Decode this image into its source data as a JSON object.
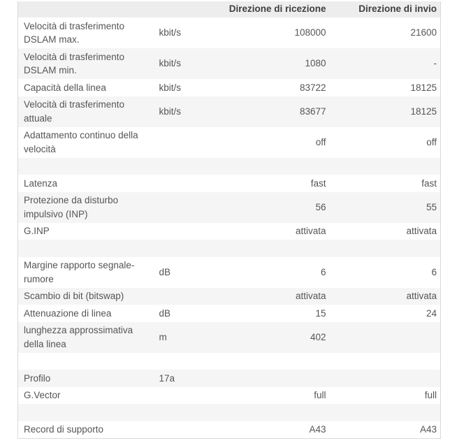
{
  "colors": {
    "page_bg": "#ffffff",
    "header_bg": "#ededed",
    "stripe_bg": "#f5f5f5",
    "row_bg": "#ffffff",
    "border": "#d9d9d9",
    "text": "#555555",
    "header_text": "#3f3f3f"
  },
  "table": {
    "headers": {
      "label": "",
      "unit": "",
      "rx": "Direzione di ricezione",
      "tx": "Direzione di invio"
    },
    "rows": [
      {
        "type": "data",
        "label": "Velocità di trasferimento DSLAM max.",
        "unit": "kbit/s",
        "rx": "108000",
        "tx": "21600"
      },
      {
        "type": "data",
        "label": "Velocità di trasferimento DSLAM min.",
        "unit": "kbit/s",
        "rx": "1080",
        "tx": "-"
      },
      {
        "type": "data",
        "label": "Capacità della linea",
        "unit": "kbit/s",
        "rx": "83722",
        "tx": "18125"
      },
      {
        "type": "data",
        "label": "Velocità di trasferimento attuale",
        "unit": "kbit/s",
        "rx": "83677",
        "tx": "18125"
      },
      {
        "type": "data",
        "label": "Adattamento continuo della velocità",
        "unit": "",
        "rx": "off",
        "tx": "off"
      },
      {
        "type": "separator"
      },
      {
        "type": "data",
        "label": "Latenza",
        "unit": "",
        "rx": "fast",
        "tx": "fast"
      },
      {
        "type": "data",
        "label": "Protezione da disturbo impulsivo (INP)",
        "unit": "",
        "rx": "56",
        "tx": "55"
      },
      {
        "type": "data",
        "label": "G.INP",
        "unit": "",
        "rx": "attivata",
        "tx": "attivata"
      },
      {
        "type": "separator"
      },
      {
        "type": "data",
        "label": "Margine rapporto segnale-rumore",
        "unit": "dB",
        "rx": "6",
        "tx": "6"
      },
      {
        "type": "data",
        "label": "Scambio di bit (bitswap)",
        "unit": "",
        "rx": "attivata",
        "tx": "attivata"
      },
      {
        "type": "data",
        "label": "Attenuazione di linea",
        "unit": "dB",
        "rx": "15",
        "tx": "24"
      },
      {
        "type": "data",
        "label": "lunghezza approssimativa della linea",
        "unit": "m",
        "rx": "402",
        "tx": ""
      },
      {
        "type": "separator"
      },
      {
        "type": "data",
        "label": "Profilo",
        "unit": "17a",
        "rx": "",
        "tx": ""
      },
      {
        "type": "data",
        "label": "G.Vector",
        "unit": "",
        "rx": "full",
        "tx": "full"
      },
      {
        "type": "separator"
      },
      {
        "type": "data",
        "label": "Record di supporto",
        "unit": "",
        "rx": "A43",
        "tx": "A43"
      }
    ]
  }
}
